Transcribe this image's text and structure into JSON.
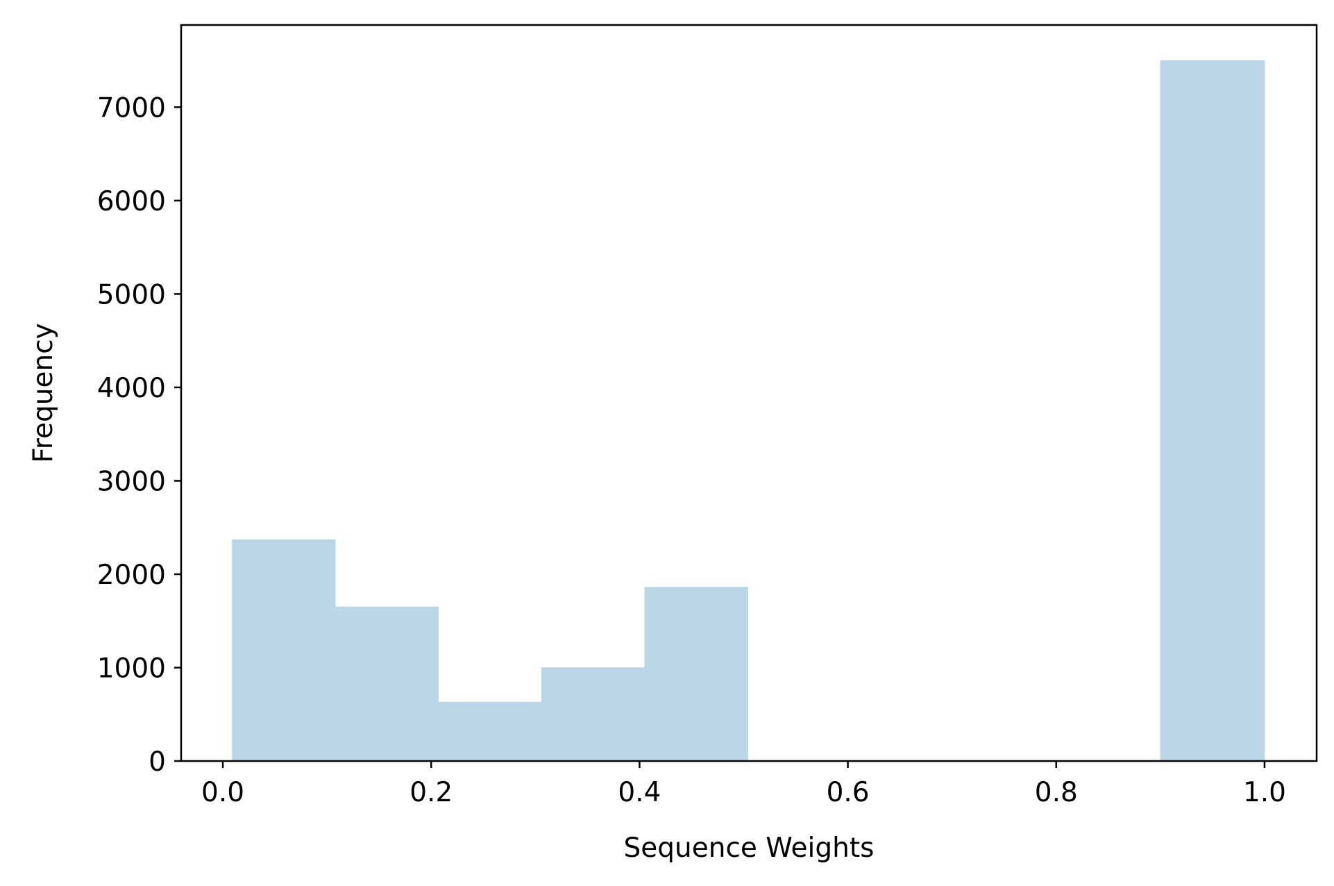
{
  "chart_data": {
    "type": "bar",
    "subtype": "histogram",
    "title": "",
    "xlabel": "Sequence Weights",
    "ylabel": "Frequency",
    "xlim": [
      -0.04,
      1.05
    ],
    "ylim": [
      0,
      7880
    ],
    "xticks": [
      0.0,
      0.2,
      0.4,
      0.6,
      0.8,
      1.0
    ],
    "xtick_labels": [
      "0.0",
      "0.2",
      "0.4",
      "0.6",
      "0.8",
      "1.0"
    ],
    "yticks": [
      0,
      1000,
      2000,
      3000,
      4000,
      5000,
      6000,
      7000
    ],
    "ytick_labels": [
      "0",
      "1000",
      "2000",
      "3000",
      "4000",
      "5000",
      "6000",
      "7000"
    ],
    "bin_edges": [
      0.009,
      0.108,
      0.207,
      0.306,
      0.405,
      0.504,
      0.603,
      0.702,
      0.801,
      0.9,
      1.0
    ],
    "counts": [
      2370,
      1650,
      630,
      1000,
      1860,
      0,
      0,
      0,
      0,
      7500
    ],
    "bar_color": "#bad6e7",
    "grid": false,
    "legend": "none"
  }
}
